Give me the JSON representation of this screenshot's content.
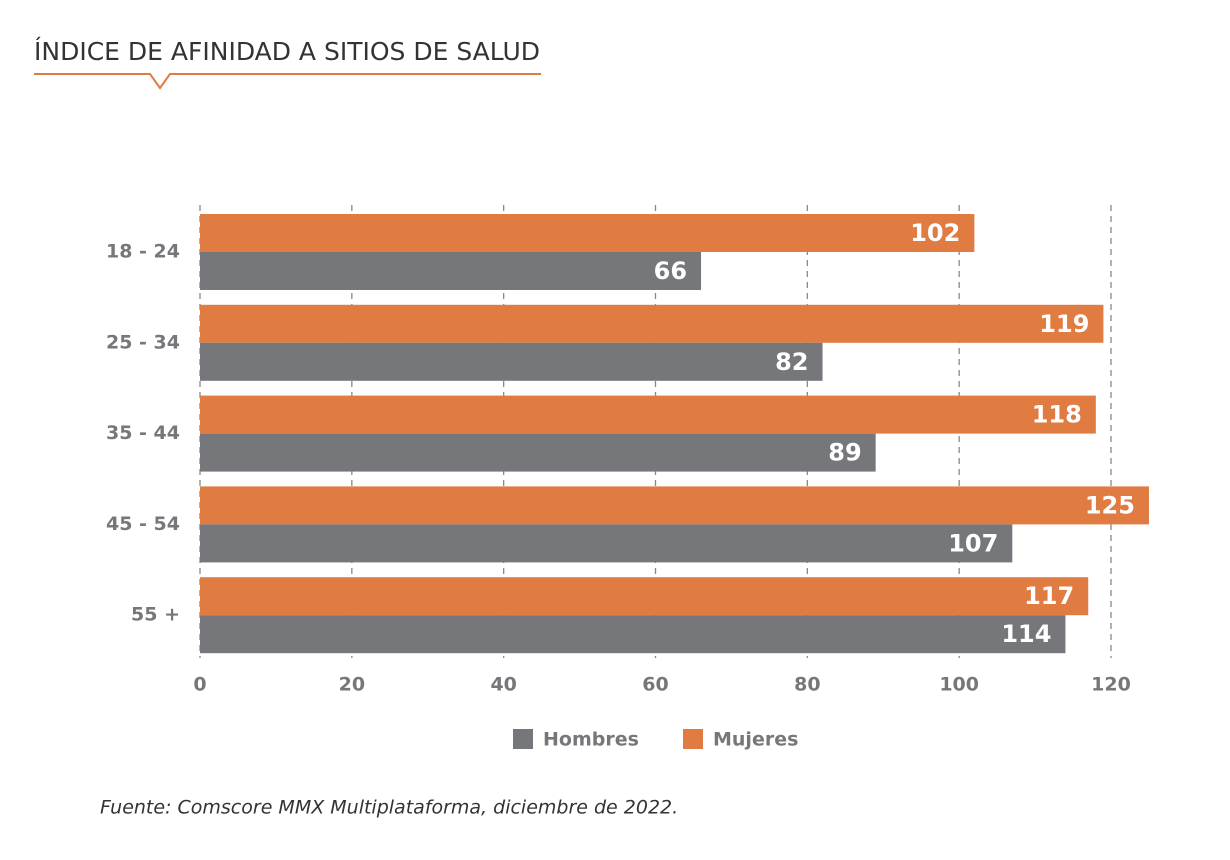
{
  "chart_data": {
    "type": "bar",
    "orientation": "horizontal",
    "title": "ÍNDICE DE AFINIDAD A SITIOS DE SALUD",
    "categories": [
      "18 - 24",
      "25 - 34",
      "35 - 44",
      "45 - 54",
      "55 +"
    ],
    "series": [
      {
        "name": "Hombres",
        "color": "#75777a",
        "values": [
          66,
          82,
          89,
          107,
          114
        ]
      },
      {
        "name": "Mujeres",
        "color": "#e07b42",
        "values": [
          102,
          119,
          118,
          125,
          117
        ]
      }
    ],
    "xlim": [
      0,
      120
    ],
    "xticks": [
      0,
      20,
      40,
      60,
      80,
      100,
      120
    ],
    "grid": true,
    "source": "Fuente: Comscore MMX Multiplataforma, diciembre de 2022."
  }
}
